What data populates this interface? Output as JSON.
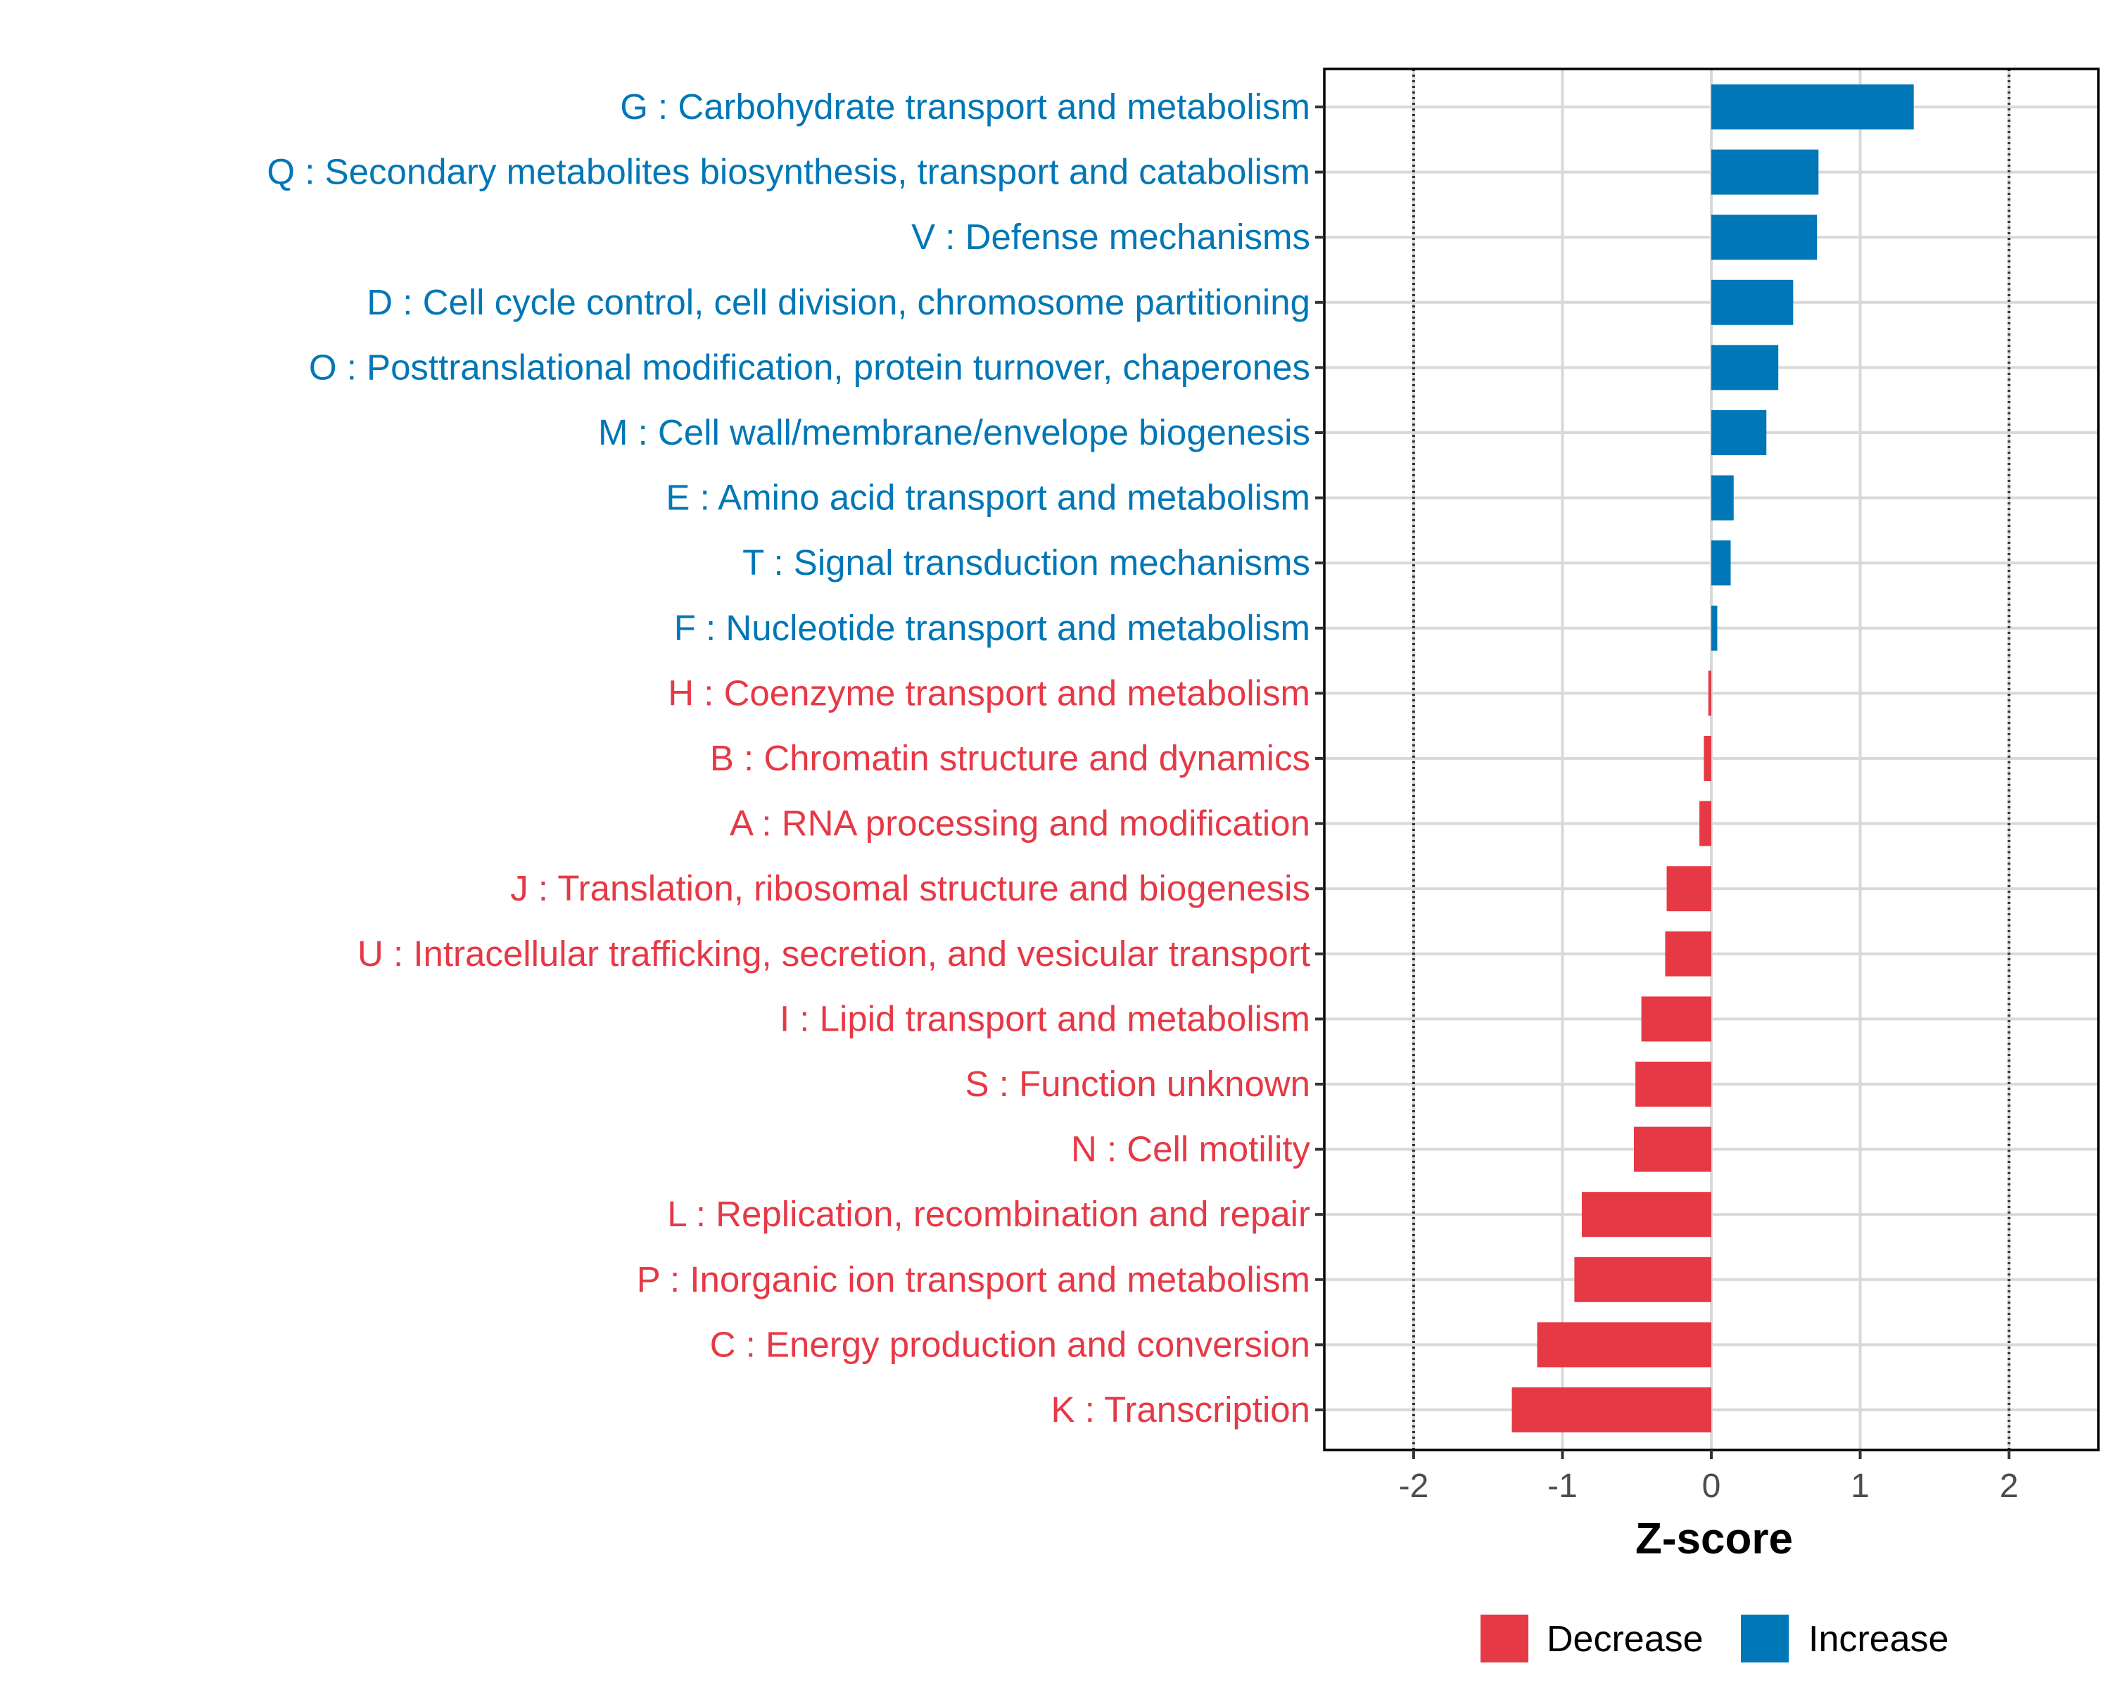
{
  "chart_data": {
    "type": "bar",
    "orientation": "horizontal",
    "xlabel": "Z-score",
    "ylabel": "",
    "xlim": [
      -2.6,
      2.6
    ],
    "xticks": [
      -2,
      -1,
      0,
      1,
      2
    ],
    "xtick_labels": [
      "-2",
      "-1",
      "0",
      "1",
      "2"
    ],
    "reference_lines": [
      -2,
      2
    ],
    "grid": true,
    "legend_position": "bottom-right",
    "legend": [
      {
        "name": "Decrease",
        "color": "#E63946"
      },
      {
        "name": "Increase",
        "color": "#0077B6"
      }
    ],
    "categories": [
      "G : Carbohydrate transport and metabolism",
      "Q : Secondary metabolites biosynthesis, transport and catabolism",
      "V : Defense mechanisms",
      "D : Cell cycle control, cell division, chromosome partitioning",
      "O : Posttranslational modification, protein turnover, chaperones",
      "M : Cell wall/membrane/envelope biogenesis",
      "E : Amino acid transport and metabolism",
      "T : Signal transduction mechanisms",
      "F : Nucleotide transport and metabolism",
      "H : Coenzyme transport and metabolism",
      "B : Chromatin structure and dynamics",
      "A : RNA processing and modification",
      "J : Translation, ribosomal structure and biogenesis",
      "U : Intracellular trafficking, secretion, and vesicular transport",
      "I : Lipid transport and metabolism",
      "S : Function unknown",
      "N : Cell motility",
      "L : Replication, recombination and repair",
      "P : Inorganic ion transport and metabolism",
      "C : Energy production and conversion",
      "K : Transcription"
    ],
    "values": [
      1.36,
      0.72,
      0.71,
      0.55,
      0.45,
      0.37,
      0.15,
      0.13,
      0.04,
      -0.02,
      -0.05,
      -0.08,
      -0.3,
      -0.31,
      -0.47,
      -0.51,
      -0.52,
      -0.87,
      -0.92,
      -1.17,
      -1.34
    ],
    "groups": [
      "Increase",
      "Increase",
      "Increase",
      "Increase",
      "Increase",
      "Increase",
      "Increase",
      "Increase",
      "Increase",
      "Decrease",
      "Decrease",
      "Decrease",
      "Decrease",
      "Decrease",
      "Decrease",
      "Decrease",
      "Decrease",
      "Decrease",
      "Decrease",
      "Decrease",
      "Decrease"
    ]
  }
}
